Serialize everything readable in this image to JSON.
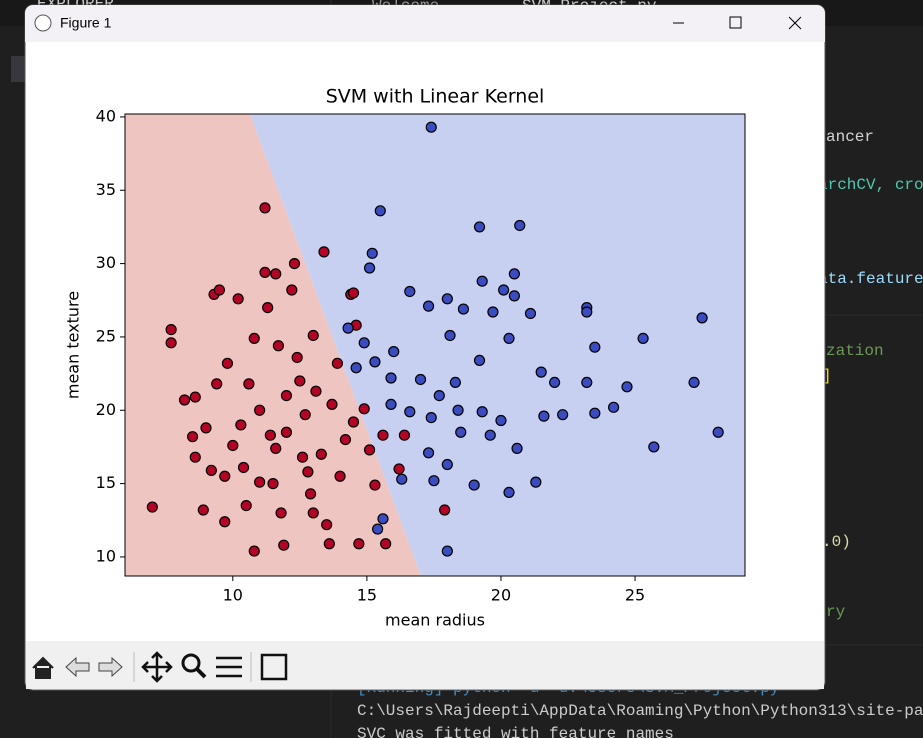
{
  "editor": {
    "explorer": "EXPLORER",
    "tabs": [
      "Welcome",
      "SVM_Project.py"
    ],
    "code_fragments": [
      "ancer",
      "archCV, cro",
      "ata.feature",
      "zation",
      "]",
      ".0)",
      "ry"
    ],
    "terminal": [
      "[Running] python -u \"d:\\Users\\SVM_Project.py\"",
      "C:\\Users\\Rajdeepti\\AppData\\Roaming\\Python\\Python313\\site-pa",
      "SVC was fitted with feature names"
    ]
  },
  "window": {
    "title": "Figure 1"
  },
  "chart_data": {
    "type": "scatter",
    "title": "SVM with Linear Kernel",
    "x_label": "mean radius",
    "y_label": "mean texture",
    "xlim": [
      5.98,
      29.1
    ],
    "ylim": [
      8.7,
      40.2
    ],
    "xticks": [
      10,
      15,
      20,
      25
    ],
    "yticks": [
      10,
      15,
      20,
      25,
      30,
      35,
      40
    ],
    "edgecolor": "#000000",
    "series": [
      {
        "color": "#b40426",
        "x": [
          7.0,
          7.7,
          7.7,
          8.2,
          8.6,
          8.6,
          8.9,
          9.0,
          9.2,
          9.3,
          9.5,
          9.4,
          9.7,
          9.7,
          10.0,
          10.2,
          10.3,
          10.4,
          10.6,
          10.8,
          10.8,
          11.0,
          11.2,
          11.2,
          11.3,
          11.4,
          11.6,
          11.7,
          11.8,
          11.9,
          12.0,
          12.2,
          12.3,
          12.4,
          12.6,
          12.7,
          12.9,
          13.0,
          13.1,
          13.3,
          13.4,
          13.5,
          13.6,
          13.7,
          13.9,
          14.0,
          14.2,
          14.4,
          14.5,
          14.6,
          14.7,
          14.9,
          15.1,
          15.3,
          15.6,
          16.2,
          16.4,
          17.9,
          11.5,
          12.0,
          10.5,
          13.0,
          12.5,
          11.0,
          9.8,
          15.7,
          14.5,
          8.5,
          12.8,
          11.6
        ],
        "values": [
          13.4,
          25.5,
          24.6,
          20.7,
          16.8,
          20.9,
          13.2,
          18.8,
          15.9,
          27.9,
          28.2,
          21.8,
          12.4,
          15.5,
          17.6,
          27.6,
          19.0,
          16.1,
          21.8,
          24.9,
          10.4,
          15.1,
          33.8,
          29.4,
          27.0,
          18.3,
          29.3,
          24.4,
          13.0,
          10.8,
          21.0,
          28.2,
          30.0,
          23.6,
          16.8,
          19.7,
          14.3,
          25.1,
          21.3,
          17.0,
          30.8,
          12.2,
          10.9,
          20.4,
          23.2,
          15.5,
          18.0,
          27.9,
          19.2,
          25.8,
          10.9,
          20.1,
          17.3,
          14.9,
          18.3,
          16.0,
          18.3,
          13.2,
          15.0,
          18.5,
          13.5,
          13.0,
          22.0,
          20.0,
          23.2,
          10.9,
          28.0,
          18.2,
          15.8,
          17.4
        ]
      },
      {
        "color": "#3b4cc0",
        "x": [
          17.4,
          15.5,
          15.2,
          15.1,
          19.2,
          20.7,
          20.5,
          19.3,
          20.1,
          16.6,
          17.3,
          18.0,
          18.6,
          19.7,
          20.5,
          21.1,
          23.2,
          23.2,
          27.5,
          25.3,
          23.5,
          18.1,
          16.0,
          15.3,
          14.3,
          14.9,
          17.0,
          17.7,
          18.3,
          19.2,
          20.3,
          21.5,
          22.0,
          23.2,
          24.7,
          27.2,
          15.9,
          16.6,
          17.4,
          18.4,
          19.3,
          20.0,
          21.6,
          22.3,
          23.5,
          24.2,
          28.1,
          25.7,
          20.6,
          19.6,
          18.5,
          17.3,
          18.0,
          19.0,
          17.5,
          16.3,
          21.3,
          20.3,
          18.0,
          15.6,
          15.4,
          14.6,
          15.9
        ],
        "values": [
          39.3,
          33.6,
          30.7,
          29.7,
          32.5,
          32.6,
          29.3,
          28.8,
          28.2,
          28.1,
          27.1,
          27.6,
          26.9,
          26.7,
          27.8,
          26.6,
          27.0,
          26.7,
          26.3,
          24.9,
          24.3,
          25.1,
          24.0,
          23.3,
          25.6,
          24.6,
          22.1,
          21.0,
          21.9,
          23.4,
          24.9,
          22.6,
          21.9,
          21.9,
          21.6,
          21.9,
          20.4,
          19.9,
          19.5,
          20.0,
          19.9,
          19.3,
          19.6,
          19.7,
          19.8,
          20.2,
          18.5,
          17.5,
          17.4,
          18.3,
          18.5,
          17.1,
          16.3,
          14.9,
          15.2,
          15.3,
          15.1,
          14.4,
          10.4,
          12.6,
          11.9,
          22.9,
          22.2
        ]
      }
    ]
  }
}
